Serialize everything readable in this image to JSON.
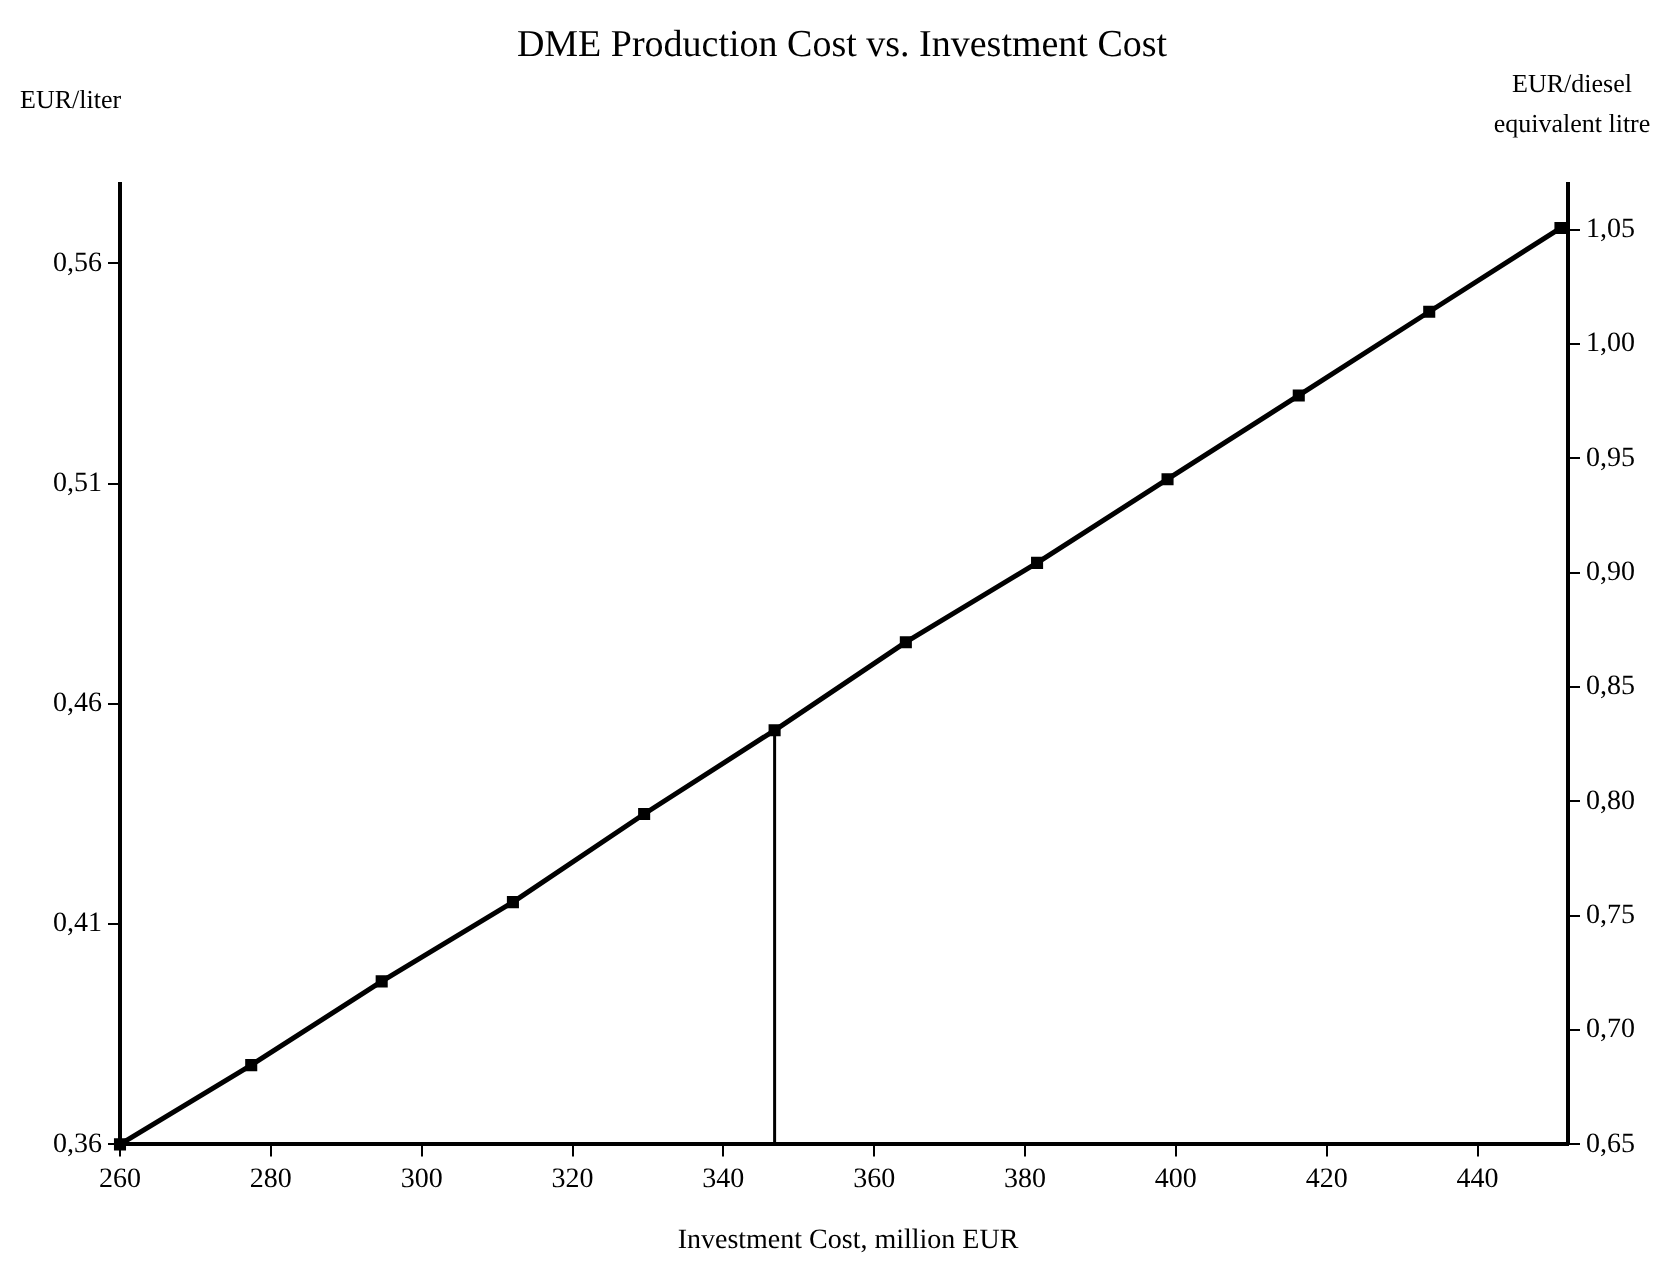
{
  "chart_data": {
    "type": "line",
    "title": "DME Production Cost vs. Investment Cost",
    "xlabel": "Investment Cost, million EUR",
    "ylabel": "EUR/liter",
    "y2label": "EUR/diesel equivalent litre",
    "xlim": [
      260,
      452
    ],
    "xticks": [
      260,
      280,
      300,
      320,
      340,
      360,
      380,
      400,
      420,
      440
    ],
    "ylim": [
      0.36,
      0.578
    ],
    "yticks": [
      {
        "value": 0.36,
        "label": "0,36"
      },
      {
        "value": 0.41,
        "label": "0,41"
      },
      {
        "value": 0.46,
        "label": "0,46"
      },
      {
        "value": 0.51,
        "label": "0,51"
      },
      {
        "value": 0.56,
        "label": "0,56"
      }
    ],
    "y2lim": [
      0.65,
      1.07
    ],
    "y2ticks": [
      {
        "value": 0.65,
        "label": "0,65"
      },
      {
        "value": 0.7,
        "label": "0,70"
      },
      {
        "value": 0.75,
        "label": "0,75"
      },
      {
        "value": 0.8,
        "label": "0,80"
      },
      {
        "value": 0.85,
        "label": "0,85"
      },
      {
        "value": 0.9,
        "label": "0,90"
      },
      {
        "value": 0.95,
        "label": "0,95"
      },
      {
        "value": 1.0,
        "label": "1,00"
      },
      {
        "value": 1.05,
        "label": "1,05"
      }
    ],
    "grid": false,
    "line_style": "solid",
    "series": [
      {
        "color": "#000000",
        "marker": "square",
        "x": [
          260,
          277.4,
          294.7,
          312.1,
          329.5,
          346.8,
          364.2,
          381.6,
          398.9,
          416.3,
          433.6,
          451
        ],
        "values": [
          0.36,
          0.378,
          0.397,
          0.415,
          0.435,
          0.454,
          0.474,
          0.492,
          0.511,
          0.53,
          0.549,
          0.568
        ]
      },
      {
        "color": "#000000",
        "marker": "none",
        "x": [
          346.8,
          346.8
        ],
        "values": [
          0.36,
          0.454
        ]
      }
    ]
  }
}
